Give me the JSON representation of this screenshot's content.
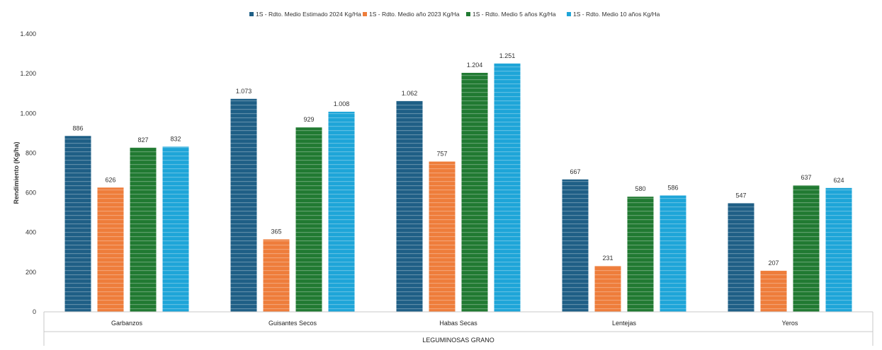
{
  "chart_data": {
    "type": "bar",
    "title": "",
    "xlabel": "",
    "group_label": "LEGUMINOSAS GRANO",
    "ylabel": "Rendimiento (Kg/ha)",
    "categories": [
      "Garbanzos",
      "Guisantes Secos",
      "Habas Secas",
      "Lentejas",
      "Yeros"
    ],
    "series": [
      {
        "name": "1S - Rdto. Medio Estimado 2024 Kg/Ha",
        "color": "#1f5f86",
        "values": [
          886,
          1073,
          1062,
          667,
          547
        ],
        "labels": [
          "886",
          "1.073",
          "1.062",
          "667",
          "547"
        ]
      },
      {
        "name": "1S - Rdto. Medio año 2023 Kg/Ha",
        "color": "#ee7d3b",
        "values": [
          626,
          365,
          757,
          231,
          207
        ],
        "labels": [
          "626",
          "365",
          "757",
          "231",
          "207"
        ]
      },
      {
        "name": "1S - Rdto. Medio 5 años Kg/Ha",
        "color": "#217a32",
        "values": [
          827,
          929,
          1204,
          580,
          637
        ],
        "labels": [
          "827",
          "929",
          "1.204",
          "580",
          "637"
        ]
      },
      {
        "name": "1S - Rdto. Medio 10 años Kg/Ha",
        "color": "#1ea5d8",
        "values": [
          832,
          1008,
          1251,
          586,
          624
        ],
        "labels": [
          "832",
          "1.008",
          "1.251",
          "586",
          "624"
        ]
      }
    ],
    "ylim": [
      0,
      1400
    ],
    "yticks": [
      0,
      200,
      400,
      600,
      800,
      1000,
      1200,
      1400
    ],
    "ytick_labels": [
      "0",
      "200",
      "400",
      "600",
      "800",
      "1.000",
      "1.200",
      "1.400"
    ],
    "grid": false,
    "legend_position": "top-center"
  }
}
